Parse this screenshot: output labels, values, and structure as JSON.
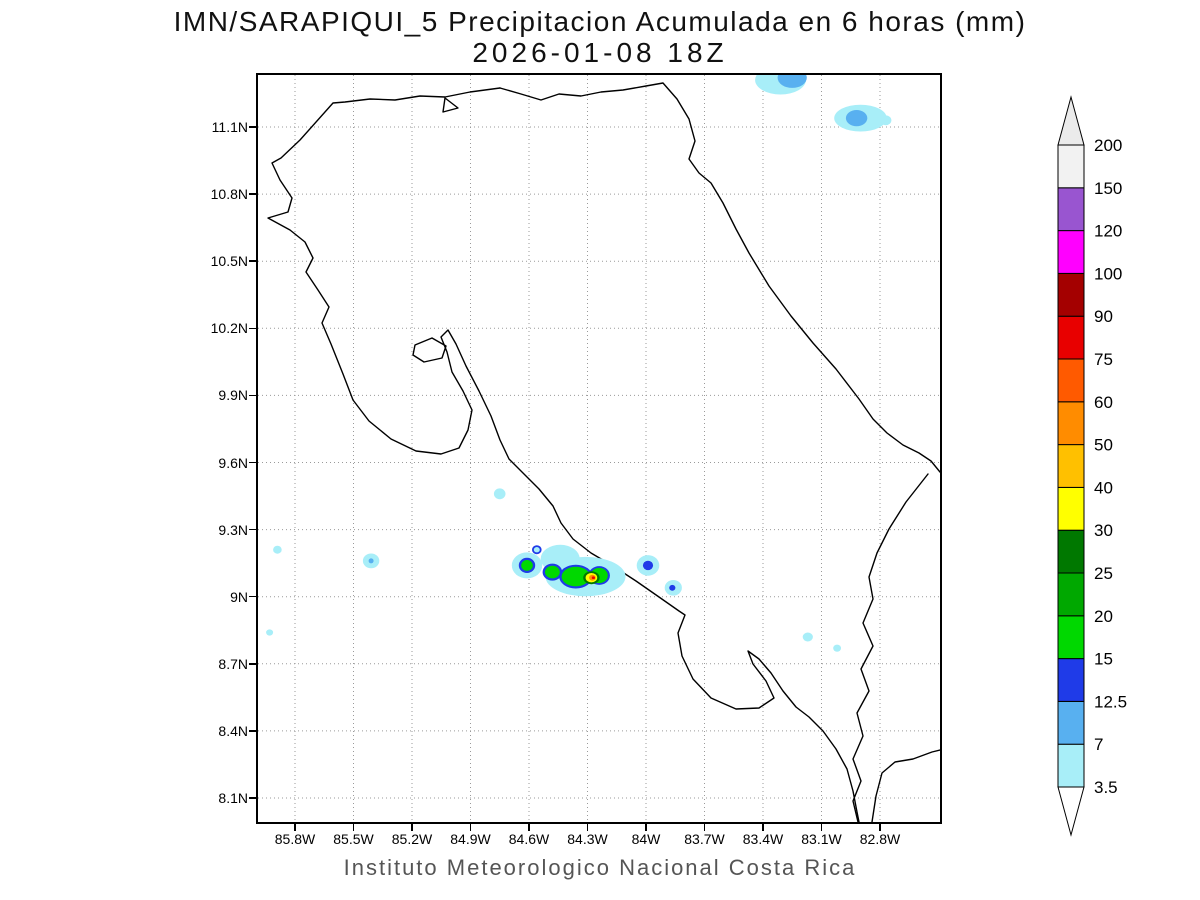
{
  "title": {
    "line1": "IMN/SARAPIQUI_5 Precipitacion Acumulada en 6 horas (mm)",
    "line2": "2026-01-08 18Z"
  },
  "caption": "Instituto Meteorologico Nacional Costa Rica",
  "axes": {
    "lat_labels_top_to_bottom": [
      "11.1N",
      "10.8N",
      "10.5N",
      "10.2N",
      "9.9N",
      "9.6N",
      "9.3N",
      "9N",
      "8.7N",
      "8.4N",
      "8.1N"
    ],
    "lon_labels_left_to_right": [
      "85.8W",
      "85.5W",
      "85.2W",
      "84.9W",
      "84.6W",
      "84.3W",
      "84W",
      "83.7W",
      "83.4W",
      "83.1W",
      "82.8W"
    ]
  },
  "chart_data": {
    "type": "heatmap",
    "title": "IMN/SARAPIQUI_5 Precipitacion Acumulada en 6 horas (mm)",
    "valid_time": "2026-01-08 18Z",
    "units": "mm",
    "region": "Costa Rica",
    "lon_deg_w_range": [
      86.0,
      82.5
    ],
    "lat_deg_n_range": [
      8.0,
      11.33
    ],
    "grid": "dotted",
    "legend_position": "right",
    "levels_mm": [
      3.5,
      7,
      12.5,
      15,
      20,
      25,
      30,
      40,
      50,
      60,
      75,
      90,
      100,
      120,
      150,
      200
    ],
    "band_colors": [
      "#a8eef8",
      "#58b0f0",
      "#1f3be8",
      "#00d800",
      "#00a800",
      "#007800",
      "#ffff00",
      "#ffc000",
      "#ff8c00",
      "#ff5a00",
      "#e80000",
      "#a40000",
      "#ff00ff",
      "#9955d0",
      "#f2f2f2"
    ],
    "above_max_color": "#ebebeb",
    "below_min_color": "#ffffff",
    "features": [
      {
        "name": "caribbean-north-cell-outer",
        "lon_w": 83.31,
        "lat_n": 11.31,
        "rx_deg": 0.13,
        "ry_deg": 0.065,
        "level_mm": 3.5
      },
      {
        "name": "caribbean-north-cell-core",
        "lon_w": 83.25,
        "lat_n": 11.32,
        "rx_deg": 0.075,
        "ry_deg": 0.045,
        "level_mm": 7
      },
      {
        "name": "caribbean-ne-cell-outer",
        "lon_w": 82.9,
        "lat_n": 11.14,
        "rx_deg": 0.135,
        "ry_deg": 0.06,
        "level_mm": 3.5
      },
      {
        "name": "caribbean-ne-cell-core",
        "lon_w": 82.92,
        "lat_n": 11.14,
        "rx_deg": 0.055,
        "ry_deg": 0.036,
        "level_mm": 7
      },
      {
        "name": "caribbean-ne-speck",
        "lon_w": 82.77,
        "lat_n": 11.13,
        "rx_deg": 0.028,
        "ry_deg": 0.022,
        "level_mm": 3.5
      },
      {
        "name": "pacific-west-speck",
        "lon_w": 85.89,
        "lat_n": 9.21,
        "rx_deg": 0.022,
        "ry_deg": 0.018,
        "level_mm": 3.5
      },
      {
        "name": "nicoya-speck-outer",
        "lon_w": 85.41,
        "lat_n": 9.16,
        "rx_deg": 0.042,
        "ry_deg": 0.033,
        "level_mm": 3.5
      },
      {
        "name": "nicoya-speck-core",
        "lon_w": 85.41,
        "lat_n": 9.16,
        "rx_deg": 0.013,
        "ry_deg": 0.011,
        "level_mm": 7
      },
      {
        "name": "inland-speck",
        "lon_w": 84.75,
        "lat_n": 9.46,
        "rx_deg": 0.03,
        "ry_deg": 0.024,
        "level_mm": 3.5
      },
      {
        "name": "pacific-cluster-west-outer",
        "lon_w": 84.61,
        "lat_n": 9.14,
        "rx_deg": 0.078,
        "ry_deg": 0.058,
        "level_mm": 3.5
      },
      {
        "name": "pacific-cluster-mid-outer",
        "lon_w": 84.44,
        "lat_n": 9.17,
        "rx_deg": 0.1,
        "ry_deg": 0.062,
        "level_mm": 3.5
      },
      {
        "name": "pacific-cluster-main-outer",
        "lon_w": 84.31,
        "lat_n": 9.09,
        "rx_deg": 0.205,
        "ry_deg": 0.088,
        "level_mm": 3.5
      },
      {
        "name": "pacific-cluster-west-blue",
        "lon_w": 84.61,
        "lat_n": 9.14,
        "rx_deg": 0.042,
        "ry_deg": 0.034,
        "level_mm": 12.5
      },
      {
        "name": "pacific-cluster-blue-1",
        "lon_w": 84.48,
        "lat_n": 9.11,
        "rx_deg": 0.05,
        "ry_deg": 0.038,
        "level_mm": 12.5
      },
      {
        "name": "pacific-cluster-blue-2",
        "lon_w": 84.36,
        "lat_n": 9.09,
        "rx_deg": 0.085,
        "ry_deg": 0.053,
        "level_mm": 12.5
      },
      {
        "name": "pacific-cluster-blue-3",
        "lon_w": 84.24,
        "lat_n": 9.095,
        "rx_deg": 0.055,
        "ry_deg": 0.042,
        "level_mm": 12.5
      },
      {
        "name": "pacific-cluster-west-green",
        "lon_w": 84.61,
        "lat_n": 9.14,
        "rx_deg": 0.03,
        "ry_deg": 0.024,
        "level_mm": 15
      },
      {
        "name": "pacific-cluster-green-1",
        "lon_w": 84.48,
        "lat_n": 9.11,
        "rx_deg": 0.038,
        "ry_deg": 0.028,
        "level_mm": 15
      },
      {
        "name": "pacific-cluster-green-2",
        "lon_w": 84.36,
        "lat_n": 9.09,
        "rx_deg": 0.073,
        "ry_deg": 0.044,
        "level_mm": 15
      },
      {
        "name": "pacific-cluster-green-3",
        "lon_w": 84.24,
        "lat_n": 9.095,
        "rx_deg": 0.044,
        "ry_deg": 0.034,
        "level_mm": 15
      },
      {
        "name": "pacific-cluster-darkgreen",
        "lon_w": 84.28,
        "lat_n": 9.085,
        "rx_deg": 0.042,
        "ry_deg": 0.029,
        "level_mm": 25
      },
      {
        "name": "pacific-cluster-yellow",
        "lon_w": 84.28,
        "lat_n": 9.085,
        "rx_deg": 0.03,
        "ry_deg": 0.021,
        "level_mm": 30
      },
      {
        "name": "pacific-cluster-orange",
        "lon_w": 84.275,
        "lat_n": 9.085,
        "rx_deg": 0.017,
        "ry_deg": 0.013,
        "level_mm": 50
      },
      {
        "name": "pacific-cluster-red",
        "lon_w": 84.27,
        "lat_n": 9.085,
        "rx_deg": 0.008,
        "ry_deg": 0.006,
        "level_mm": 75
      },
      {
        "name": "pacific-cluster-ring",
        "lon_w": 84.56,
        "lat_n": 9.21,
        "rx_deg": 0.02,
        "ry_deg": 0.016,
        "level_mm": 12.5,
        "outline": true
      },
      {
        "name": "central-cell-outer",
        "lon_w": 83.99,
        "lat_n": 9.14,
        "rx_deg": 0.058,
        "ry_deg": 0.046,
        "level_mm": 3.5
      },
      {
        "name": "central-cell-core",
        "lon_w": 83.99,
        "lat_n": 9.14,
        "rx_deg": 0.026,
        "ry_deg": 0.021,
        "level_mm": 12.5
      },
      {
        "name": "south-cell-outer",
        "lon_w": 83.86,
        "lat_n": 9.04,
        "rx_deg": 0.044,
        "ry_deg": 0.035,
        "level_mm": 3.5
      },
      {
        "name": "south-cell-core",
        "lon_w": 83.865,
        "lat_n": 9.04,
        "rx_deg": 0.016,
        "ry_deg": 0.013,
        "level_mm": 12.5
      },
      {
        "name": "west-far-speck",
        "lon_w": 85.93,
        "lat_n": 8.84,
        "rx_deg": 0.018,
        "ry_deg": 0.014,
        "level_mm": 3.5
      },
      {
        "name": "golfo-speck-1",
        "lon_w": 83.17,
        "lat_n": 8.82,
        "rx_deg": 0.026,
        "ry_deg": 0.02,
        "level_mm": 3.5
      },
      {
        "name": "golfo-speck-2",
        "lon_w": 83.02,
        "lat_n": 8.77,
        "rx_deg": 0.02,
        "ry_deg": 0.016,
        "level_mm": 3.5
      }
    ]
  }
}
